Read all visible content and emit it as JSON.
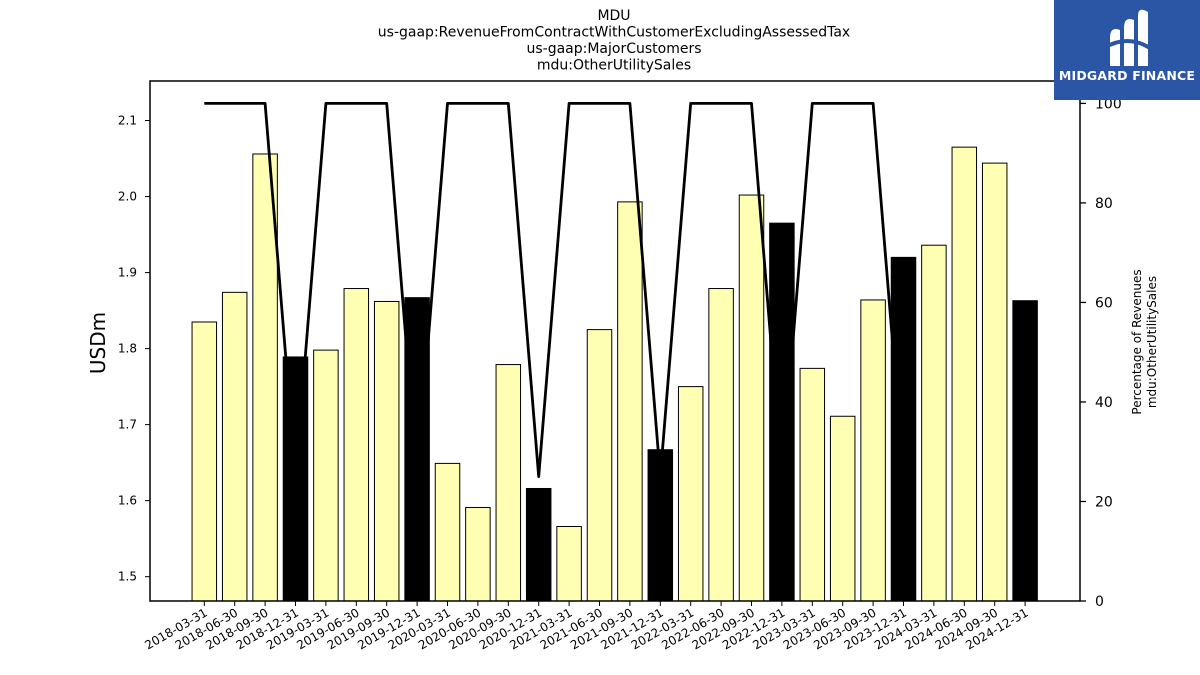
{
  "chart_data": {
    "type": "bar",
    "title_lines": [
      "MDU",
      "us-gaap:RevenueFromContractWithCustomerExcludingAssessedTax",
      "us-gaap:MajorCustomers",
      "mdu:OtherUtilitySales"
    ],
    "categories": [
      "2018-03-31",
      "2018-06-30",
      "2018-09-30",
      "2018-12-31",
      "2019-03-31",
      "2019-06-30",
      "2019-09-30",
      "2019-12-31",
      "2020-03-31",
      "2020-06-30",
      "2020-09-30",
      "2020-12-31",
      "2021-03-31",
      "2021-06-30",
      "2021-09-30",
      "2021-12-31",
      "2022-03-31",
      "2022-06-30",
      "2022-09-30",
      "2022-12-31",
      "2023-03-31",
      "2023-06-30",
      "2023-09-30",
      "2023-12-31",
      "2024-03-31",
      "2024-06-30",
      "2024-09-30",
      "2024-12-31"
    ],
    "values": [
      1.835,
      1.874,
      2.056,
      1.789,
      1.798,
      1.879,
      1.862,
      1.867,
      1.649,
      1.591,
      1.779,
      1.616,
      1.566,
      1.825,
      1.993,
      1.667,
      1.75,
      1.879,
      2.002,
      1.965,
      1.774,
      1.711,
      1.864,
      1.92,
      1.936,
      2.065,
      2.044,
      1.863
    ],
    "bar_colors": {
      "quarter": "#ffffb3",
      "annual": "#000000",
      "edge": "#000000"
    },
    "annual_indices": [
      3,
      7,
      11,
      15,
      19,
      23,
      27
    ],
    "ylabel": "USDm",
    "ylim": [
      1.468,
      2.152
    ],
    "yticks": [
      1.5,
      1.6,
      1.7,
      1.8,
      1.9,
      2.0,
      2.1
    ],
    "ytick_labels": [
      "1.5",
      "1.6",
      "1.7",
      "1.8",
      "1.9",
      "2.0",
      "2.1"
    ],
    "secondary_axis": {
      "label_lines": [
        "Percentage of Revenues",
        "mdu:OtherUtilitySales"
      ],
      "ylim": [
        0,
        104.5
      ],
      "yticks": [
        0,
        20,
        40,
        60,
        80,
        100
      ],
      "ytick_labels": [
        "0",
        "20",
        "40",
        "60",
        "80",
        "100"
      ]
    },
    "line_series": {
      "color": "#000000",
      "values": [
        100,
        100,
        100,
        25,
        100,
        100,
        100,
        25,
        100,
        100,
        100,
        25,
        100,
        100,
        100,
        25,
        100,
        100,
        100,
        25,
        100,
        100,
        100,
        25,
        null,
        null,
        null,
        null
      ]
    },
    "grid": false
  },
  "logo": {
    "text": "MIDGARD FINANCE",
    "color": "#2b55a5"
  }
}
